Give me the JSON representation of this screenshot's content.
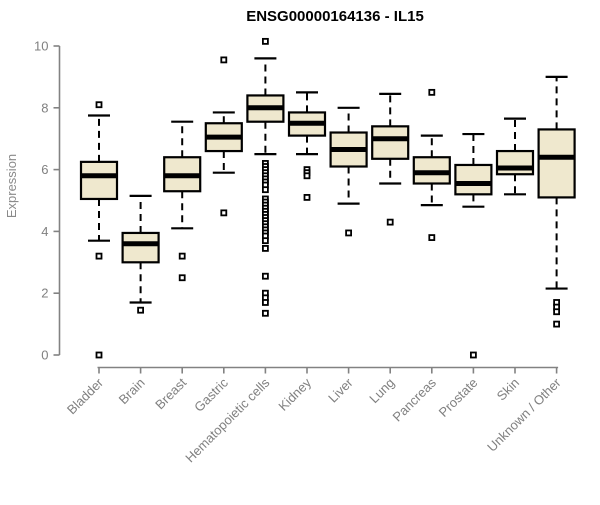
{
  "colors": {
    "box_fill": "#EFE8CE",
    "box_stroke": "#000000",
    "median_color": "#000000",
    "axis_color": "#828282",
    "tick_label_color": "#808080",
    "title_color": "#000000",
    "background": "#ffffff"
  },
  "chart_data": {
    "type": "boxplot",
    "title": "ENSG00000164136 - IL15",
    "ylabel": "Expression",
    "xlabel": "",
    "ylim": [
      0,
      10
    ],
    "yticks": [
      0,
      2,
      4,
      6,
      8,
      10
    ],
    "grid": false,
    "legend": false,
    "categories": [
      "Bladder",
      "Brain",
      "Breast",
      "Gastric",
      "Hematopoietic cells",
      "Kidney",
      "Liver",
      "Lung",
      "Pancreas",
      "Prostate",
      "Skin",
      "Unknown / Other"
    ],
    "series": [
      {
        "label": "Bladder",
        "whisker_low": 3.7,
        "q1": 5.05,
        "median": 5.8,
        "q3": 6.25,
        "whisker_high": 7.75,
        "outliers": [
          8.1,
          3.2,
          0.0
        ]
      },
      {
        "label": "Brain",
        "whisker_low": 1.7,
        "q1": 3.0,
        "median": 3.6,
        "q3": 3.95,
        "whisker_high": 5.15,
        "outliers": [
          1.45
        ]
      },
      {
        "label": "Breast",
        "whisker_low": 4.1,
        "q1": 5.3,
        "median": 5.8,
        "q3": 6.4,
        "whisker_high": 7.55,
        "outliers": [
          3.2,
          2.5
        ]
      },
      {
        "label": "Gastric",
        "whisker_low": 5.9,
        "q1": 6.6,
        "median": 7.05,
        "q3": 7.5,
        "whisker_high": 7.85,
        "outliers": [
          9.55,
          4.6
        ]
      },
      {
        "label": "Hematopoietic cells",
        "whisker_low": 6.5,
        "q1": 7.55,
        "median": 8.0,
        "q3": 8.4,
        "whisker_high": 9.6,
        "outliers": [
          10.15,
          6.2,
          6.1,
          6.0,
          5.9,
          5.8,
          5.7,
          5.6,
          5.5,
          5.35,
          5.05,
          4.95,
          4.85,
          4.75,
          4.65,
          4.55,
          4.45,
          4.35,
          4.25,
          4.15,
          4.05,
          3.95,
          3.85,
          3.7,
          3.45,
          2.55,
          2.0,
          1.85,
          1.7,
          1.35
        ]
      },
      {
        "label": "Kidney",
        "whisker_low": 6.5,
        "q1": 7.1,
        "median": 7.5,
        "q3": 7.85,
        "whisker_high": 8.5,
        "outliers": [
          6.0,
          5.9,
          5.8,
          5.1
        ]
      },
      {
        "label": "Liver",
        "whisker_low": 4.9,
        "q1": 6.1,
        "median": 6.65,
        "q3": 7.2,
        "whisker_high": 8.0,
        "outliers": [
          3.95
        ]
      },
      {
        "label": "Lung",
        "whisker_low": 5.55,
        "q1": 6.35,
        "median": 7.0,
        "q3": 7.4,
        "whisker_high": 8.45,
        "outliers": [
          4.3
        ]
      },
      {
        "label": "Pancreas",
        "whisker_low": 4.85,
        "q1": 5.55,
        "median": 5.9,
        "q3": 6.4,
        "whisker_high": 7.1,
        "outliers": [
          8.5,
          3.8
        ]
      },
      {
        "label": "Prostate",
        "whisker_low": 4.8,
        "q1": 5.2,
        "median": 5.55,
        "q3": 6.15,
        "whisker_high": 7.15,
        "outliers": [
          0.0
        ]
      },
      {
        "label": "Skin",
        "whisker_low": 5.2,
        "q1": 5.85,
        "median": 6.05,
        "q3": 6.6,
        "whisker_high": 7.65,
        "outliers": []
      },
      {
        "label": "Unknown / Other",
        "whisker_low": 2.15,
        "q1": 5.1,
        "median": 6.4,
        "q3": 7.3,
        "whisker_high": 9.0,
        "outliers": [
          1.7,
          1.55,
          1.4,
          1.0
        ]
      }
    ]
  }
}
